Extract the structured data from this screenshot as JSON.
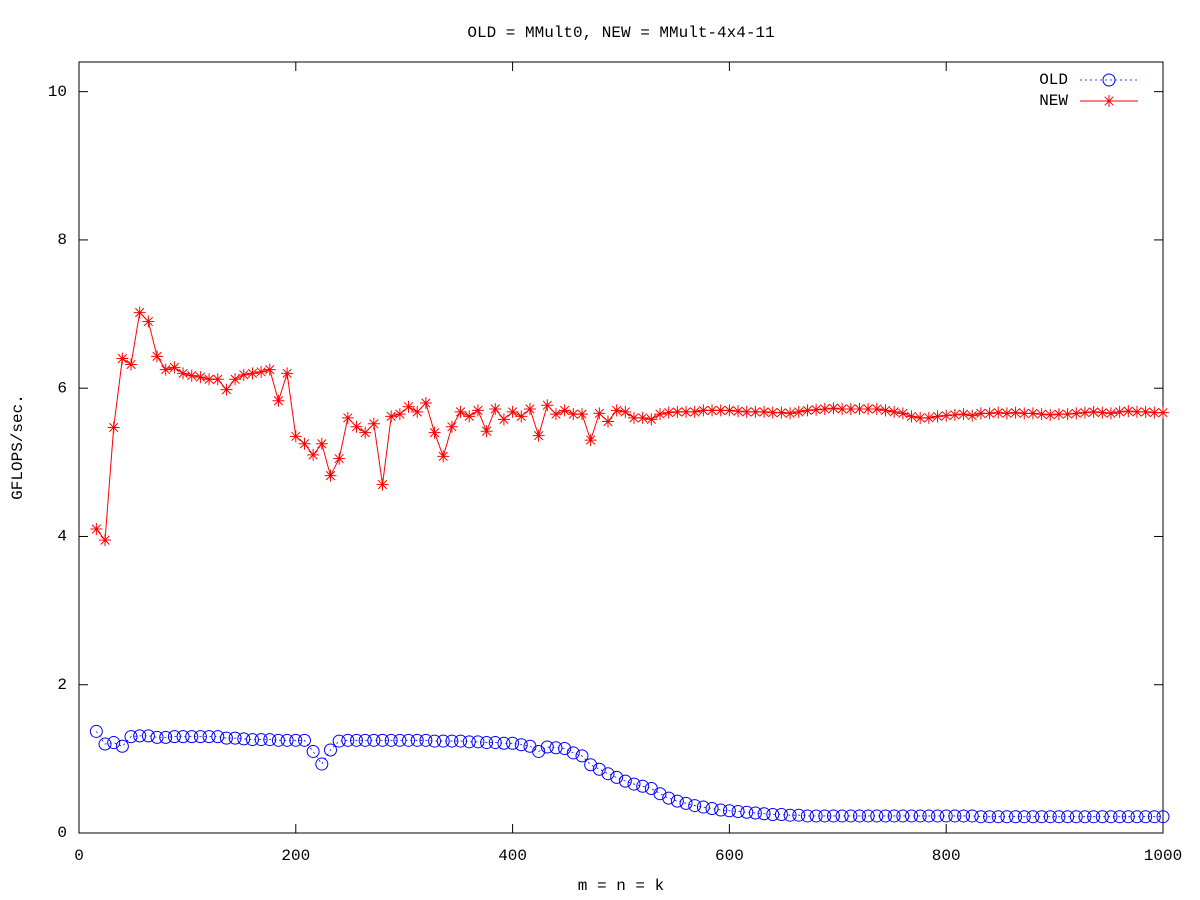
{
  "chart_data": {
    "type": "line",
    "title": "OLD = MMult0, NEW = MMult-4x4-11",
    "xlabel": "m = n = k",
    "ylabel": "GFLOPS/sec.",
    "xlim": [
      0,
      1000
    ],
    "ylim": [
      0,
      10.4
    ],
    "xticks": [
      0,
      200,
      400,
      600,
      800,
      1000
    ],
    "yticks": [
      0,
      2,
      4,
      6,
      8,
      10
    ],
    "legend": "top-right",
    "x": [
      16,
      24,
      32,
      40,
      48,
      56,
      64,
      72,
      80,
      88,
      96,
      104,
      112,
      120,
      128,
      136,
      144,
      152,
      160,
      168,
      176,
      184,
      192,
      200,
      208,
      216,
      224,
      232,
      240,
      248,
      256,
      264,
      272,
      280,
      288,
      296,
      304,
      312,
      320,
      328,
      336,
      344,
      352,
      360,
      368,
      376,
      384,
      392,
      400,
      408,
      416,
      424,
      432,
      440,
      448,
      456,
      464,
      472,
      480,
      488,
      496,
      504,
      512,
      520,
      528,
      536,
      544,
      552,
      560,
      568,
      576,
      584,
      592,
      600,
      608,
      616,
      624,
      632,
      640,
      648,
      656,
      664,
      672,
      680,
      688,
      696,
      704,
      712,
      720,
      728,
      736,
      744,
      752,
      760,
      768,
      776,
      784,
      792,
      800,
      808,
      816,
      824,
      832,
      840,
      848,
      856,
      864,
      872,
      880,
      888,
      896,
      904,
      912,
      920,
      928,
      936,
      944,
      952,
      960,
      968,
      976,
      984,
      992,
      1000
    ],
    "series": [
      {
        "name": "OLD",
        "color": "#0000ff",
        "marker": "circle",
        "values": [
          1.37,
          1.2,
          1.22,
          1.17,
          1.3,
          1.31,
          1.31,
          1.29,
          1.29,
          1.3,
          1.3,
          1.3,
          1.3,
          1.3,
          1.3,
          1.28,
          1.28,
          1.27,
          1.26,
          1.26,
          1.26,
          1.25,
          1.25,
          1.25,
          1.25,
          1.1,
          0.93,
          1.12,
          1.24,
          1.25,
          1.25,
          1.25,
          1.25,
          1.25,
          1.25,
          1.25,
          1.25,
          1.25,
          1.25,
          1.24,
          1.24,
          1.24,
          1.24,
          1.23,
          1.23,
          1.22,
          1.22,
          1.21,
          1.21,
          1.19,
          1.17,
          1.1,
          1.16,
          1.15,
          1.14,
          1.08,
          1.04,
          0.92,
          0.86,
          0.8,
          0.75,
          0.7,
          0.66,
          0.63,
          0.6,
          0.53,
          0.47,
          0.43,
          0.4,
          0.37,
          0.35,
          0.33,
          0.31,
          0.3,
          0.29,
          0.28,
          0.27,
          0.26,
          0.25,
          0.25,
          0.24,
          0.24,
          0.23,
          0.23,
          0.23,
          0.23,
          0.23,
          0.23,
          0.23,
          0.23,
          0.23,
          0.23,
          0.23,
          0.23,
          0.23,
          0.23,
          0.23,
          0.23,
          0.23,
          0.23,
          0.23,
          0.23,
          0.22,
          0.22,
          0.22,
          0.22,
          0.22,
          0.22,
          0.22,
          0.22,
          0.22,
          0.22,
          0.22,
          0.22,
          0.22,
          0.22,
          0.22,
          0.22,
          0.22,
          0.22,
          0.22,
          0.22,
          0.22,
          0.22
        ]
      },
      {
        "name": "NEW",
        "color": "#ff0000",
        "marker": "star",
        "values": [
          4.1,
          3.95,
          5.47,
          6.4,
          6.32,
          7.02,
          6.9,
          6.43,
          6.25,
          6.28,
          6.2,
          6.17,
          6.15,
          6.12,
          6.12,
          5.98,
          6.12,
          6.18,
          6.2,
          6.22,
          6.25,
          5.83,
          6.2,
          5.35,
          5.25,
          5.1,
          5.25,
          4.82,
          5.05,
          5.6,
          5.48,
          5.4,
          5.52,
          4.7,
          5.62,
          5.65,
          5.75,
          5.68,
          5.8,
          5.4,
          5.08,
          5.48,
          5.68,
          5.62,
          5.7,
          5.42,
          5.72,
          5.58,
          5.68,
          5.62,
          5.72,
          5.36,
          5.77,
          5.65,
          5.7,
          5.65,
          5.65,
          5.3,
          5.66,
          5.55,
          5.7,
          5.68,
          5.6,
          5.6,
          5.58,
          5.65,
          5.67,
          5.68,
          5.68,
          5.68,
          5.7,
          5.7,
          5.7,
          5.7,
          5.69,
          5.68,
          5.68,
          5.68,
          5.67,
          5.67,
          5.66,
          5.68,
          5.7,
          5.71,
          5.72,
          5.73,
          5.72,
          5.72,
          5.72,
          5.72,
          5.72,
          5.7,
          5.68,
          5.66,
          5.62,
          5.6,
          5.6,
          5.62,
          5.63,
          5.64,
          5.65,
          5.63,
          5.66,
          5.66,
          5.67,
          5.66,
          5.67,
          5.66,
          5.66,
          5.65,
          5.64,
          5.65,
          5.65,
          5.66,
          5.67,
          5.68,
          5.67,
          5.66,
          5.68,
          5.69,
          5.68,
          5.68,
          5.67,
          5.67
        ]
      }
    ]
  }
}
